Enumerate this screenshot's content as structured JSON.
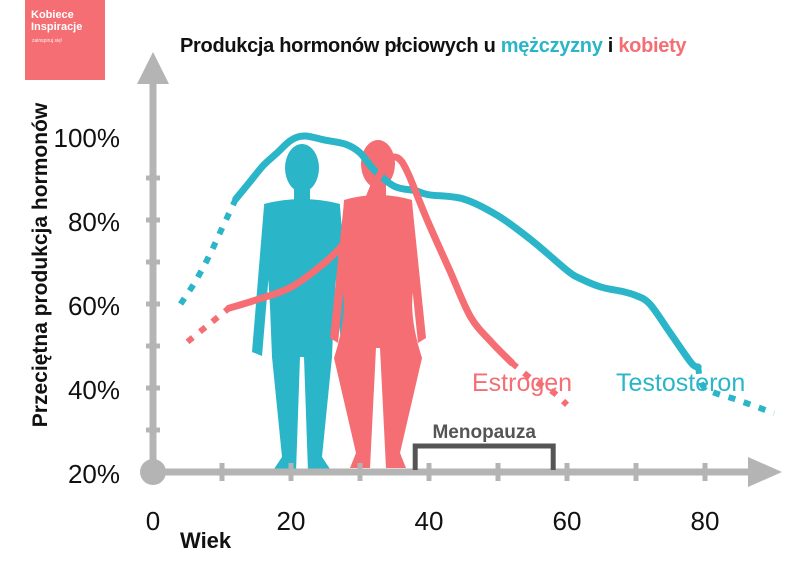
{
  "brand": {
    "name": "Kobiece Inspiracje",
    "tagline": "zainspiruj się!",
    "color": "#f46e73"
  },
  "title": {
    "prefix": "Produkcja hormonów płciowych u ",
    "men": "mężczyzny",
    "middle": " i ",
    "women": "kobiety"
  },
  "chart_data": {
    "type": "line",
    "xlabel": "Wiek",
    "ylabel": "Przeciętna produkcja hormonów",
    "x_ticks": [
      0,
      20,
      40,
      60,
      80
    ],
    "y_ticks": [
      "20%",
      "40%",
      "60%",
      "80%",
      "100%"
    ],
    "xlim": [
      0,
      90
    ],
    "ylim": [
      20,
      100
    ],
    "grid": false,
    "series": [
      {
        "name": "Testosteron",
        "color": "#2bb5c8",
        "x": [
          4,
          6,
          8,
          10,
          12,
          14,
          16,
          18,
          20,
          22,
          25,
          28,
          30,
          32,
          35,
          38,
          40,
          45,
          50,
          55,
          60,
          62,
          65,
          68,
          70,
          72,
          75,
          78,
          79,
          80,
          85,
          90
        ],
        "y": [
          60,
          65,
          71,
          78,
          85,
          89,
          93,
          96,
          99,
          100,
          99,
          98,
          96,
          92,
          88,
          87,
          86,
          85,
          81,
          75,
          68,
          66,
          64,
          63,
          62,
          60,
          53,
          46,
          45,
          40,
          37,
          34
        ],
        "solid_range": [
          12,
          79
        ]
      },
      {
        "name": "Estrogen",
        "color": "#f46e73",
        "x": [
          5,
          8,
          11,
          15,
          20,
          25,
          28,
          30,
          32,
          34,
          35,
          36,
          37,
          38,
          40,
          43,
          46,
          49,
          52,
          55,
          58,
          60
        ],
        "y": [
          51,
          55,
          59,
          61,
          64,
          70,
          75,
          80,
          88,
          94,
          95,
          94,
          91,
          87,
          79,
          68,
          57,
          51,
          46,
          42,
          39,
          36
        ],
        "solid_range": [
          11,
          52
        ]
      }
    ],
    "annotations": [
      {
        "label": "Menopauza",
        "from": 38,
        "to": 58,
        "color": "#555555"
      }
    ]
  }
}
